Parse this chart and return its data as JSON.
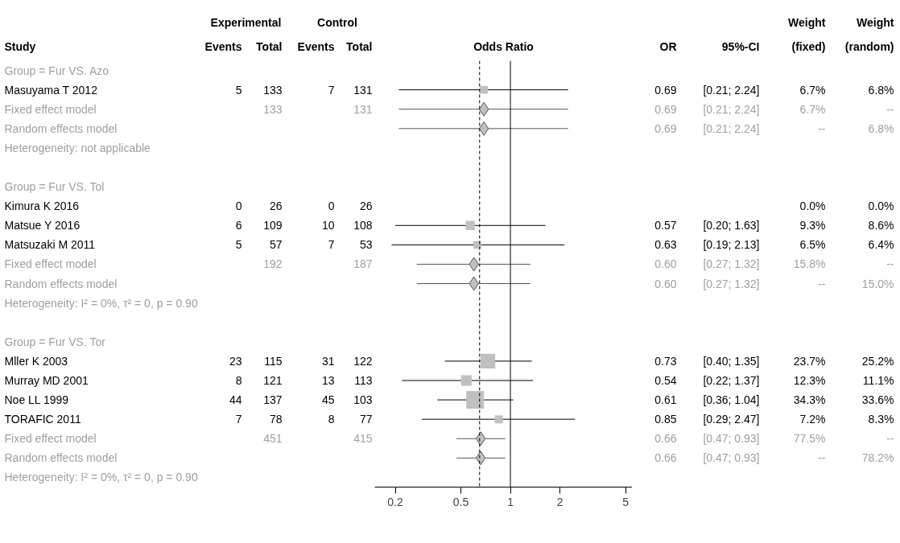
{
  "chart_data": [
    {
      "type": "other",
      "categories": [
        "Study",
        "Events",
        "Total",
        "Events",
        "Total"
      ],
      "annotations": [
        "Experimental",
        "Control"
      ],
      "colors": [
        "#a0a0a0",
        "#000000",
        "#a0a0a0",
        "#a0a0a0",
        "#a0a0a0",
        "#000000",
        "#a0a0a0",
        "#000000",
        "#000000",
        "#000000",
        "#a0a0a0",
        "#a0a0a0",
        "#a0a0a0",
        "#000000",
        "#a0a0a0",
        "#000000",
        "#000000",
        "#000000",
        "#000000",
        "#a0a0a0",
        "#a0a0a0",
        "#a0a0a0"
      ],
      "cells": [
        [
          "Group = Fur VS. Azo",
          null,
          null,
          null,
          null
        ],
        [
          "Masuyama T 2012",
          "5",
          "133",
          "7",
          "131"
        ],
        [
          "Fixed effect model",
          null,
          "133",
          null,
          "131"
        ],
        [
          "Random effects model",
          null,
          null,
          null,
          null
        ],
        [
          "Heterogeneity: not applicable",
          null,
          null,
          null,
          null
        ],
        [
          null,
          null,
          null,
          null,
          null
        ],
        [
          "Group = Fur VS. Tol",
          null,
          null,
          null,
          null
        ],
        [
          "Kimura K 2016",
          "0",
          "26",
          "0",
          "26"
        ],
        [
          "Matsue Y 2016",
          "6",
          "109",
          "10",
          "108"
        ],
        [
          "Matsuzaki M 2011",
          "5",
          "57",
          "7",
          "53"
        ],
        [
          "Fixed effect model",
          null,
          "192",
          null,
          "187"
        ],
        [
          "Random effects model",
          null,
          null,
          null,
          null
        ],
        [
          "Heterogeneity: I² = 0%, τ² = 0, p = 0.90",
          null,
          null,
          null,
          null
        ],
        [
          null,
          null,
          null,
          null,
          null
        ],
        [
          "Group = Fur VS. Tor",
          null,
          null,
          null,
          null
        ],
        [
          "Mller K 2003",
          "23",
          "115",
          "31",
          "122"
        ],
        [
          "Murray MD 2001",
          "8",
          "121",
          "13",
          "113"
        ],
        [
          "Noe LL 1999",
          "44",
          "137",
          "45",
          "103"
        ],
        [
          "TORAFIC 2011",
          "7",
          "78",
          "8",
          "77"
        ],
        [
          "Fixed effect model",
          null,
          "451",
          null,
          "415"
        ],
        [
          "Random effects model",
          null,
          null,
          null,
          null
        ],
        [
          "Heterogeneity: I² = 0%, τ² = 0, p = 0.90",
          null,
          null,
          null,
          null
        ]
      ]
    },
    {
      "type": "scatter",
      "orientation": "horizontal",
      "title": "Odds Ratio",
      "categories": [
        null,
        null,
        null,
        null,
        null,
        null,
        null,
        null,
        null,
        null,
        null,
        null,
        null,
        null,
        null,
        null,
        null,
        null,
        null,
        null,
        null,
        null
      ],
      "xlim": [
        0.15,
        5.5
      ],
      "xticks": [
        0.2,
        0.5,
        1,
        2,
        5
      ],
      "log": "x",
      "grid": false,
      "tick_labels": "x",
      "ref_lines": [
        {
          "axis": "x",
          "value": 1,
          "line_style": "solid",
          "color": "#000000"
        },
        {
          "axis": "x",
          "value": 0.65,
          "line_style": "dashed",
          "color": "#000000"
        }
      ],
      "series": [
        {
          "marker": "square",
          "color": "#c0c0c0",
          "values": [
            null,
            0.69,
            null,
            null,
            null,
            null,
            null,
            null,
            0.57,
            0.63,
            null,
            null,
            null,
            null,
            null,
            0.73,
            0.54,
            0.61,
            0.85,
            null,
            null,
            null
          ],
          "errors": [
            null,
            [
              0.21,
              2.24
            ],
            null,
            null,
            null,
            null,
            null,
            null,
            [
              0.2,
              1.63
            ],
            [
              0.19,
              2.13
            ],
            null,
            null,
            null,
            null,
            null,
            [
              0.4,
              1.35
            ],
            [
              0.22,
              1.37
            ],
            [
              0.36,
              1.04
            ],
            [
              0.29,
              2.47
            ],
            null,
            null,
            null
          ],
          "sizes": [
            null,
            0.2,
            null,
            null,
            null,
            null,
            null,
            null,
            0.27,
            0.19,
            null,
            null,
            null,
            null,
            null,
            0.69,
            0.36,
            1,
            0.21,
            null,
            null,
            null
          ]
        },
        {
          "marker": "diamond",
          "color": "#c0c0c0",
          "values": [
            null,
            null,
            0.69,
            null,
            null,
            null,
            null,
            null,
            null,
            null,
            0.6,
            null,
            null,
            null,
            null,
            null,
            null,
            null,
            null,
            0.66,
            null,
            null
          ],
          "errors": [
            null,
            null,
            [
              0.21,
              2.24
            ],
            null,
            null,
            null,
            null,
            null,
            null,
            null,
            [
              0.27,
              1.32
            ],
            null,
            null,
            null,
            null,
            null,
            null,
            null,
            null,
            [
              0.47,
              0.93
            ],
            null,
            null
          ]
        },
        {
          "marker": "diamond",
          "color": "#c0c0c0",
          "values": [
            null,
            null,
            null,
            0.69,
            null,
            null,
            null,
            null,
            null,
            null,
            null,
            0.6,
            null,
            null,
            null,
            null,
            null,
            null,
            null,
            null,
            0.66,
            null
          ],
          "errors": [
            null,
            null,
            null,
            [
              0.21,
              2.24
            ],
            null,
            null,
            null,
            null,
            null,
            null,
            null,
            [
              0.27,
              1.32
            ],
            null,
            null,
            null,
            null,
            null,
            null,
            null,
            null,
            [
              0.47,
              0.93
            ],
            null
          ]
        }
      ]
    },
    {
      "type": "other",
      "categories": [
        "OR",
        "95%-CI",
        "Weight\n(fixed)",
        "Weight\n(random)"
      ],
      "colors": [
        "#a0a0a0",
        "#000000",
        "#a0a0a0",
        "#a0a0a0",
        "#a0a0a0",
        "#000000",
        "#a0a0a0",
        "#000000",
        "#000000",
        "#000000",
        "#a0a0a0",
        "#a0a0a0",
        "#a0a0a0",
        "#000000",
        "#a0a0a0",
        "#000000",
        "#000000",
        "#000000",
        "#000000",
        "#a0a0a0",
        "#a0a0a0",
        "#a0a0a0"
      ],
      "cells": [
        [
          null,
          null,
          null,
          null
        ],
        [
          "0.69",
          "[0.21; 2.24]",
          "6.7%",
          "6.8%"
        ],
        [
          "0.69",
          "[0.21; 2.24]",
          "6.7%",
          "--"
        ],
        [
          "0.69",
          "[0.21; 2.24]",
          "--",
          "6.8%"
        ],
        [
          null,
          null,
          null,
          null
        ],
        [
          null,
          null,
          null,
          null
        ],
        [
          null,
          null,
          null,
          null
        ],
        [
          null,
          null,
          "0.0%",
          "0.0%"
        ],
        [
          "0.57",
          "[0.20; 1.63]",
          "9.3%",
          "8.6%"
        ],
        [
          "0.63",
          "[0.19; 2.13]",
          "6.5%",
          "6.4%"
        ],
        [
          "0.60",
          "[0.27; 1.32]",
          "15.8%",
          "--"
        ],
        [
          "0.60",
          "[0.27; 1.32]",
          "--",
          "15.0%"
        ],
        [
          null,
          null,
          null,
          null
        ],
        [
          null,
          null,
          null,
          null
        ],
        [
          null,
          null,
          null,
          null
        ],
        [
          "0.73",
          "[0.40; 1.35]",
          "23.7%",
          "25.2%"
        ],
        [
          "0.54",
          "[0.22; 1.37]",
          "12.3%",
          "11.1%"
        ],
        [
          "0.61",
          "[0.36; 1.04]",
          "34.3%",
          "33.6%"
        ],
        [
          "0.85",
          "[0.29; 2.47]",
          "7.2%",
          "8.3%"
        ],
        [
          "0.66",
          "[0.47; 0.93]",
          "77.5%",
          "--"
        ],
        [
          "0.66",
          "[0.47; 0.93]",
          "--",
          "78.2%"
        ],
        [
          null,
          null,
          null,
          null
        ]
      ]
    }
  ]
}
